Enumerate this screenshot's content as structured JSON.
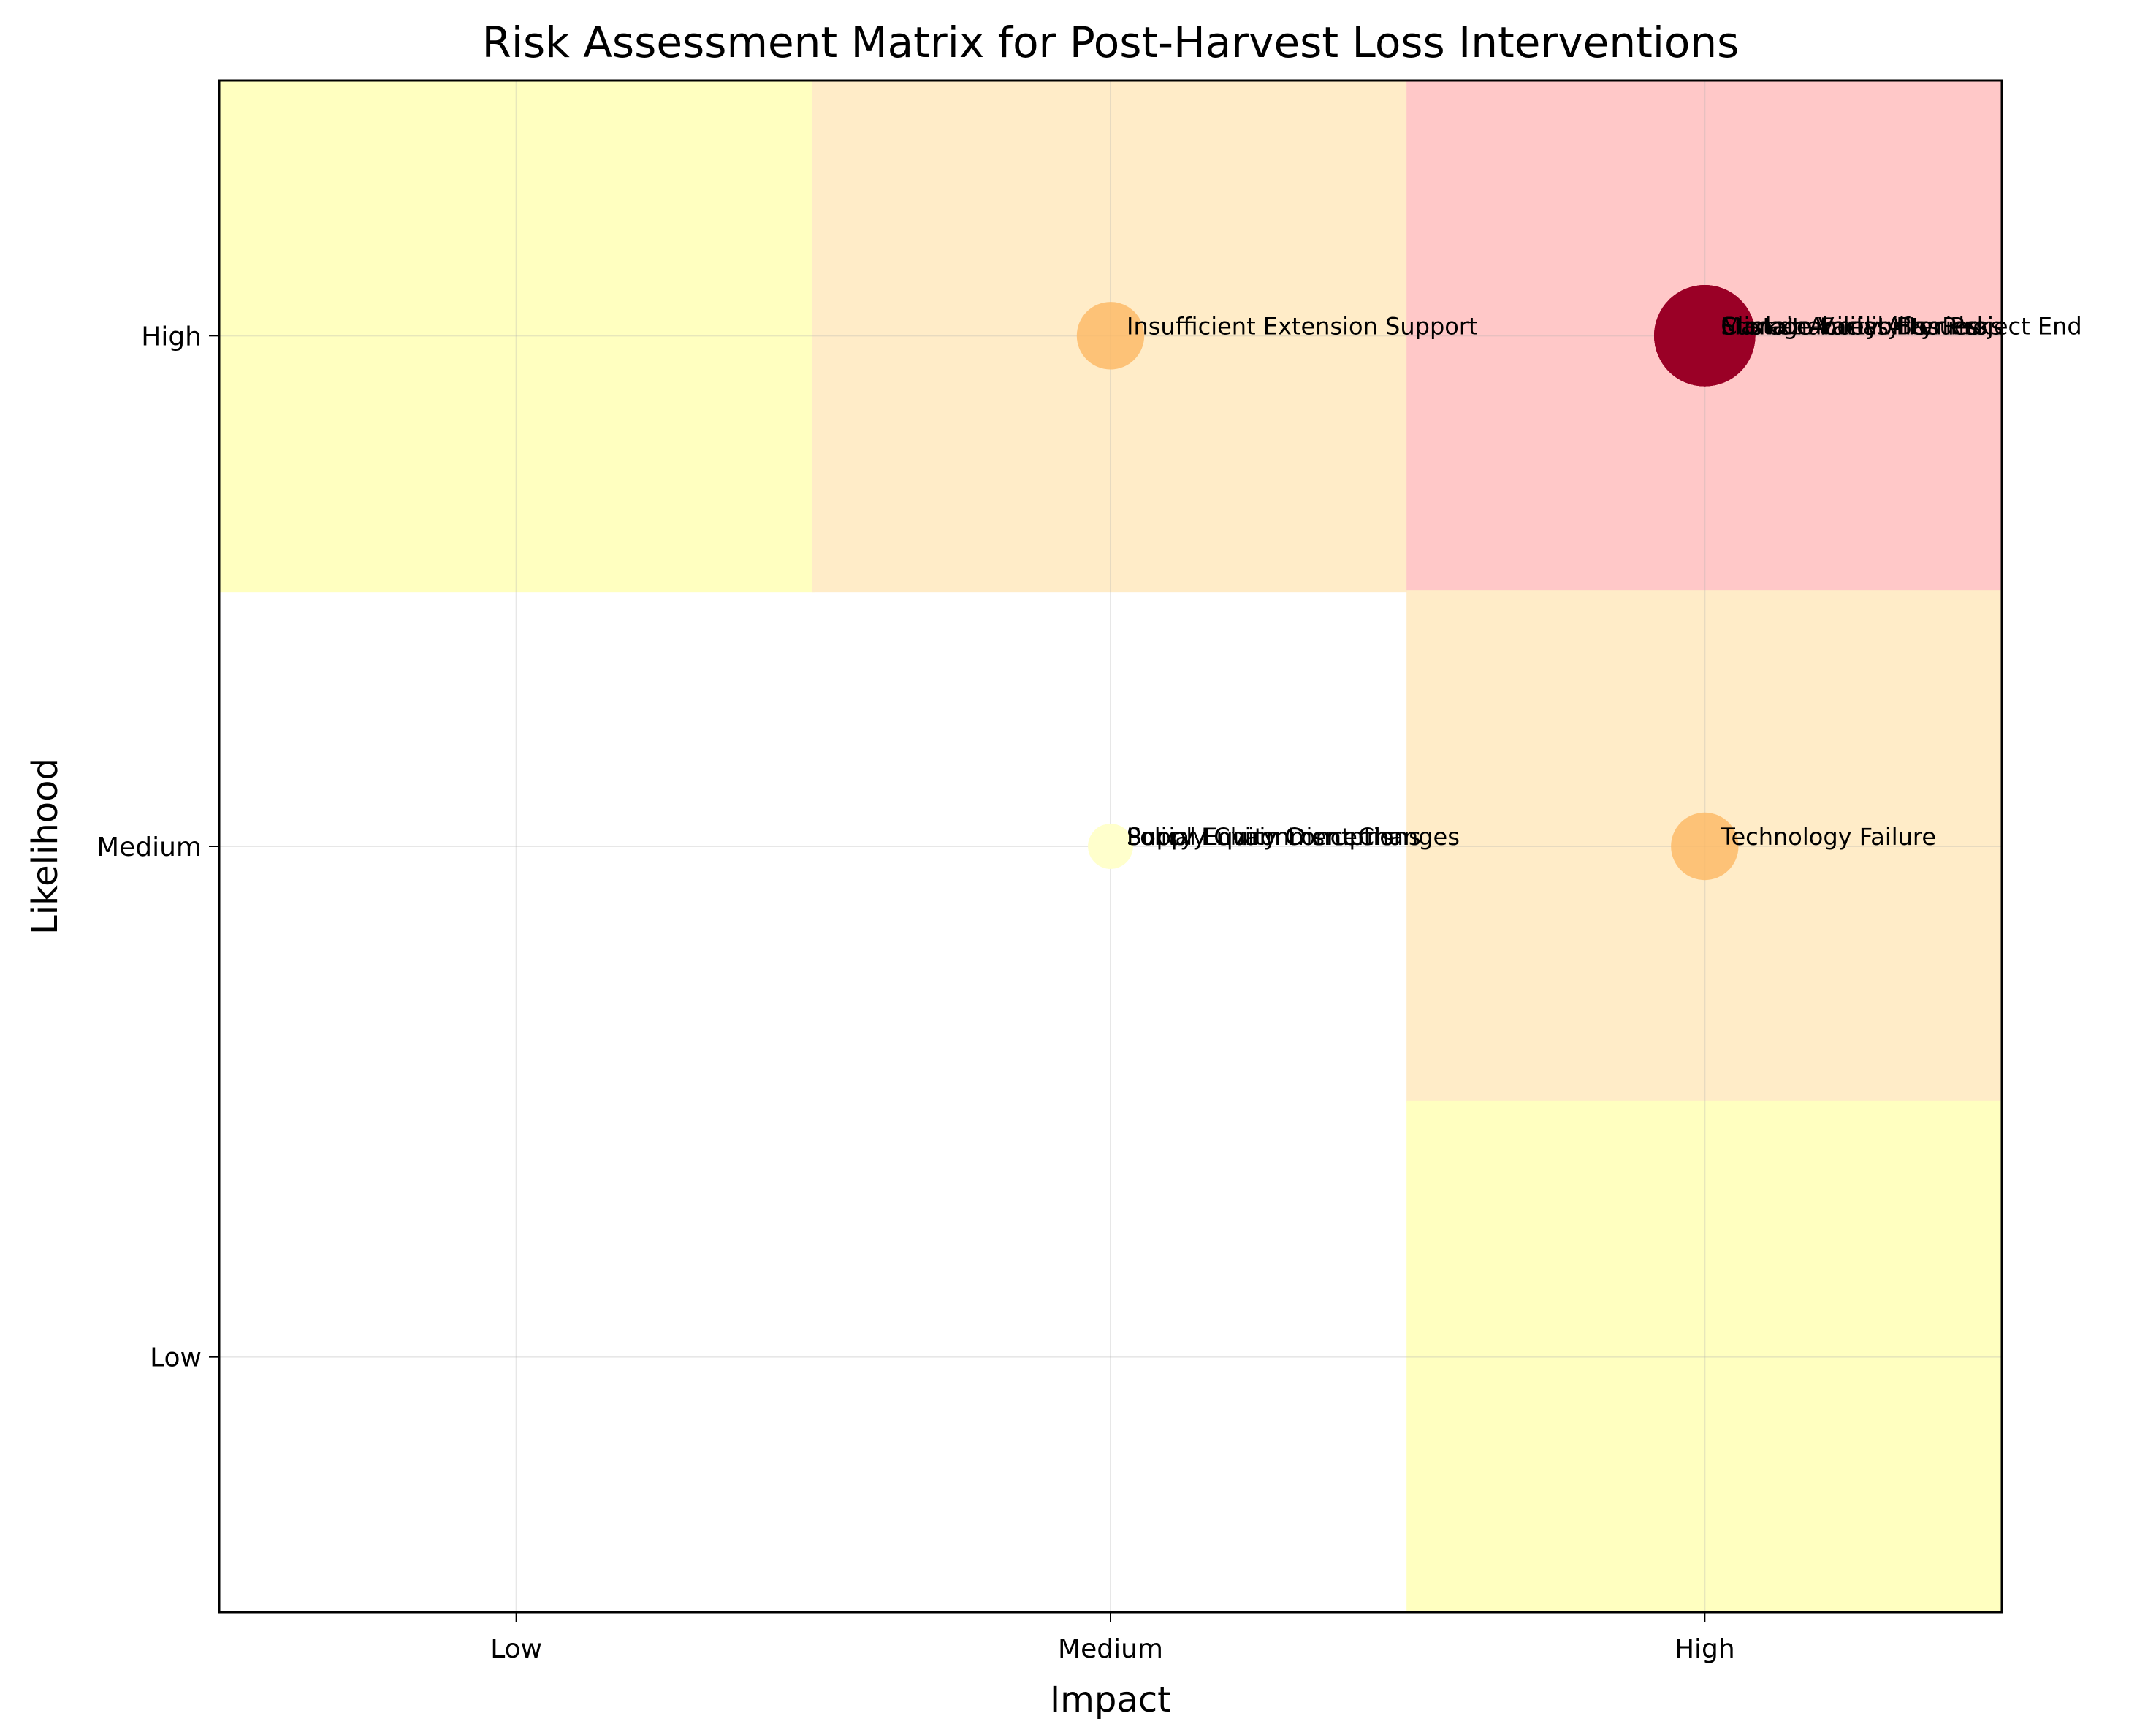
{
  "chart_data": {
    "type": "scatter",
    "title": "Risk Assessment Matrix for Post-Harvest Loss Interventions",
    "xlabel": "Impact",
    "ylabel": "Likelihood",
    "x_categories": [
      "Low",
      "Medium",
      "High"
    ],
    "y_categories": [
      "Low",
      "Medium",
      "High"
    ],
    "xlim": [
      -0.5,
      2.5
    ],
    "ylim": [
      -0.5,
      2.5
    ],
    "grid": true,
    "zones": [
      {
        "x0": -0.5,
        "x1": 0.5,
        "y0": 1.5,
        "y1": 2.5,
        "color": "#ffffc0"
      },
      {
        "x0": 0.5,
        "x1": 1.5,
        "y0": 1.5,
        "y1": 2.5,
        "color": "#ffecc8"
      },
      {
        "x0": 1.5,
        "x1": 2.5,
        "y0": 1.5,
        "y1": 2.5,
        "color": "#ffc8c8"
      },
      {
        "x0": 1.5,
        "x1": 2.5,
        "y0": 0.5,
        "y1": 1.5,
        "color": "#ffecc8"
      },
      {
        "x0": 1.5,
        "x1": 2.5,
        "y0": -0.5,
        "y1": 0.5,
        "color": "#ffffc0"
      }
    ],
    "points": [
      {
        "impact": "Medium",
        "likelihood": "High",
        "score": 6,
        "color": "#fdb863",
        "opacity": 0.8,
        "label": "Insufficient Extension Support"
      },
      {
        "impact": "High",
        "likelihood": "High",
        "score": 9,
        "color": "#9a0026",
        "opacity": 1,
        "label": "Climate Variability Risks"
      },
      {
        "impact": "High",
        "likelihood": "High",
        "score": 9,
        "color": "#9a0026",
        "opacity": 1,
        "label": "Market Access Barriers"
      },
      {
        "impact": "High",
        "likelihood": "High",
        "score": 9,
        "color": "#9a0026",
        "opacity": 1,
        "label": "Storage Facility Issues"
      },
      {
        "impact": "High",
        "likelihood": "High",
        "score": 9,
        "color": "#9a0026",
        "opacity": 1,
        "label": "Sustainability After Project End"
      },
      {
        "impact": "High",
        "likelihood": "Medium",
        "score": 6,
        "color": "#fdb863",
        "opacity": 0.8,
        "label": "Technology Failure"
      },
      {
        "impact": "Medium",
        "likelihood": "Medium",
        "score": 4,
        "color": "#ffffcc",
        "opacity": 0.8,
        "label": "Supply Chain Disruptions"
      },
      {
        "impact": "Medium",
        "likelihood": "Medium",
        "score": 4,
        "color": "#ffffcc",
        "opacity": 0.8,
        "label": "Policy Environment Changes"
      },
      {
        "impact": "Medium",
        "likelihood": "Medium",
        "score": 4,
        "color": "#ffffcc",
        "opacity": 0.8,
        "label": "Social Equity Concerns"
      }
    ]
  }
}
